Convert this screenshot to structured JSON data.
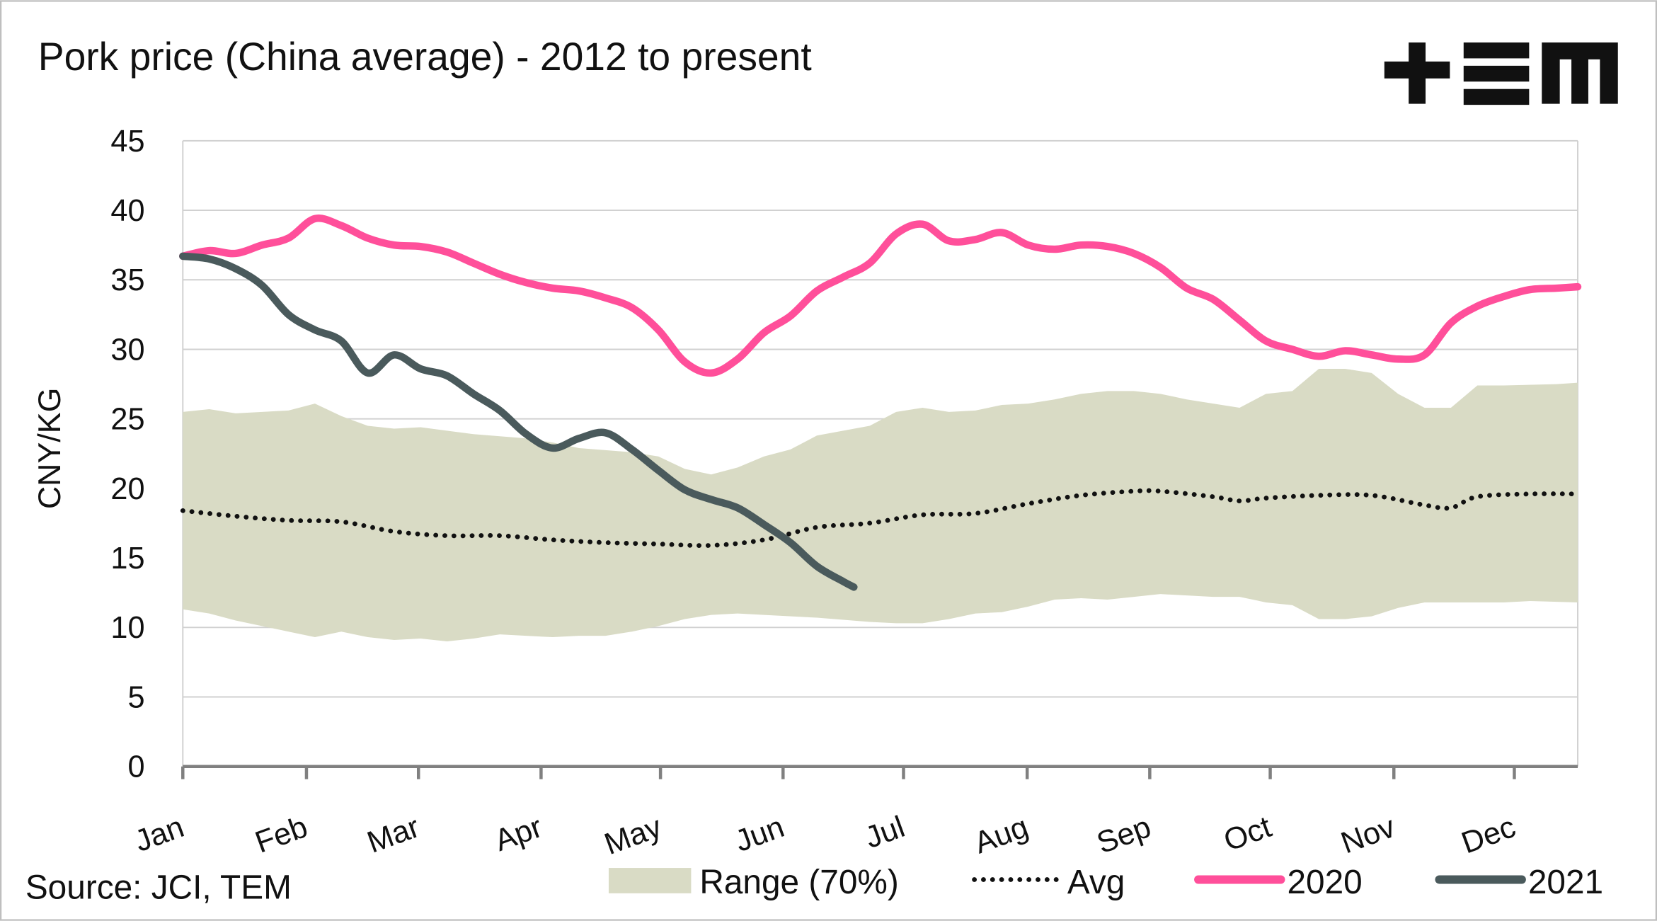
{
  "chart_data": {
    "type": "line",
    "title": "Pork price (China average) - 2012 to present",
    "ylabel": "CNY/KG",
    "xlabel": "",
    "source": "Source: JCI, TEM",
    "logo_text": "+EM",
    "ylim": [
      0,
      45
    ],
    "yticks": [
      0,
      5,
      10,
      15,
      20,
      25,
      30,
      35,
      40,
      45
    ],
    "x_unit": "week of year",
    "xlim": [
      0,
      52.8
    ],
    "xticks": [
      {
        "label": "Jan",
        "x": 0
      },
      {
        "label": "Feb",
        "x": 4.68
      },
      {
        "label": "Mar",
        "x": 8.92
      },
      {
        "label": "Apr",
        "x": 13.56
      },
      {
        "label": "May",
        "x": 18.08
      },
      {
        "label": "Jun",
        "x": 22.72
      },
      {
        "label": "Jul",
        "x": 27.28
      },
      {
        "label": "Aug",
        "x": 31.96
      },
      {
        "label": "Sep",
        "x": 36.6
      },
      {
        "label": "Oct",
        "x": 41.16
      },
      {
        "label": "Nov",
        "x": 45.84
      },
      {
        "label": "Dec",
        "x": 50.4
      }
    ],
    "grid": true,
    "legend_position": "bottom",
    "range": {
      "name": "Range (70%)",
      "color": "#d9dbc5",
      "upper": {
        "x": [
          0,
          1,
          2,
          4,
          5,
          6,
          7,
          8,
          9,
          11,
          13,
          14,
          15,
          17,
          18,
          19,
          20,
          21,
          22,
          23,
          24,
          26,
          27,
          28,
          29,
          30,
          31,
          32,
          33,
          34,
          35,
          36,
          37,
          38,
          39,
          40,
          41,
          42,
          43,
          44,
          45,
          46,
          47,
          48,
          49,
          50,
          52,
          52.8
        ],
        "y": [
          25.5,
          25.7,
          25.4,
          25.6,
          26.1,
          25.2,
          24.5,
          24.3,
          24.4,
          23.9,
          23.6,
          23.3,
          22.9,
          22.6,
          22.3,
          21.4,
          21.0,
          21.5,
          22.3,
          22.8,
          23.8,
          24.5,
          25.5,
          25.8,
          25.5,
          25.6,
          26.0,
          26.1,
          26.4,
          26.8,
          27.0,
          27.0,
          26.8,
          26.4,
          26.1,
          25.8,
          26.8,
          27.0,
          28.6,
          28.6,
          28.3,
          26.8,
          25.8,
          25.8,
          27.4,
          27.4,
          27.5,
          27.6
        ]
      },
      "lower": {
        "x": [
          0,
          1,
          2,
          4,
          5,
          6,
          7,
          8,
          9,
          10,
          11,
          12,
          13,
          14,
          15,
          16,
          17,
          18,
          19,
          20,
          21,
          22,
          24,
          26,
          27,
          28,
          29,
          30,
          31,
          32,
          33,
          34,
          35,
          36,
          37,
          39,
          40,
          41,
          42,
          43,
          44,
          45,
          46,
          47,
          48,
          50,
          51,
          52.8
        ],
        "y": [
          11.3,
          11.0,
          10.5,
          9.7,
          9.3,
          9.7,
          9.3,
          9.1,
          9.2,
          9.0,
          9.2,
          9.5,
          9.4,
          9.3,
          9.4,
          9.4,
          9.7,
          10.1,
          10.6,
          10.9,
          11.0,
          10.9,
          10.7,
          10.4,
          10.3,
          10.3,
          10.6,
          11.0,
          11.1,
          11.5,
          12.0,
          12.1,
          12.0,
          12.2,
          12.4,
          12.2,
          12.2,
          11.8,
          11.6,
          10.6,
          10.6,
          10.8,
          11.4,
          11.8,
          11.8,
          11.8,
          11.9,
          11.8
        ]
      }
    },
    "series": [
      {
        "name": "Avg",
        "color": "#111111",
        "style": "dotted",
        "x": [
          0,
          2,
          4,
          6,
          8,
          10,
          12,
          14,
          16,
          18,
          20,
          22,
          24,
          26,
          28,
          30,
          32,
          34,
          36,
          37,
          39,
          40,
          41,
          43,
          45,
          47,
          48,
          49,
          51,
          52.8
        ],
        "y": [
          18.4,
          18.0,
          17.7,
          17.6,
          16.9,
          16.6,
          16.6,
          16.3,
          16.1,
          16.0,
          15.9,
          16.3,
          17.2,
          17.5,
          18.1,
          18.2,
          18.9,
          19.5,
          19.8,
          19.8,
          19.4,
          19.1,
          19.3,
          19.5,
          19.5,
          18.8,
          18.6,
          19.4,
          19.6,
          19.6
        ]
      },
      {
        "name": "2020",
        "color": "#ff4f9a",
        "style": "solid",
        "x": [
          0,
          1,
          2,
          3,
          4,
          5,
          6,
          7,
          8,
          9,
          10,
          11,
          12,
          13,
          14,
          15,
          16,
          17,
          18,
          19,
          20,
          21,
          22,
          23,
          24,
          25,
          26,
          27,
          28,
          29,
          30,
          31,
          32,
          33,
          34,
          35,
          36,
          37,
          38,
          39,
          40,
          41,
          42,
          43,
          44,
          45,
          46,
          47,
          48,
          49,
          50,
          51,
          52,
          52.8
        ],
        "y": [
          36.7,
          37.1,
          36.9,
          37.5,
          38.0,
          39.4,
          38.9,
          38.0,
          37.5,
          37.4,
          37.0,
          36.2,
          35.4,
          34.8,
          34.4,
          34.2,
          33.7,
          33.0,
          31.4,
          29.1,
          28.3,
          29.3,
          31.2,
          32.4,
          34.2,
          35.2,
          36.2,
          38.3,
          39.0,
          37.8,
          37.9,
          38.4,
          37.5,
          37.2,
          37.5,
          37.4,
          36.9,
          35.9,
          34.4,
          33.6,
          32.1,
          30.6,
          30.0,
          29.5,
          29.9,
          29.6,
          29.3,
          29.6,
          31.9,
          33.1,
          33.8,
          34.3,
          34.4,
          34.5
        ]
      },
      {
        "name": "2021",
        "color": "#4a5a5c",
        "style": "solid",
        "x": [
          0,
          1,
          2,
          3,
          4,
          5,
          6,
          7,
          8,
          9,
          10,
          11,
          12,
          13,
          14,
          15,
          16,
          17,
          18,
          19,
          20,
          21,
          22,
          23,
          24,
          25,
          25.4
        ],
        "y": [
          36.7,
          36.5,
          35.8,
          34.6,
          32.5,
          31.4,
          30.6,
          28.3,
          29.6,
          28.6,
          28.1,
          26.8,
          25.6,
          23.9,
          22.9,
          23.6,
          24.0,
          22.8,
          21.3,
          19.9,
          19.2,
          18.6,
          17.4,
          16.1,
          14.4,
          13.3,
          12.9
        ]
      }
    ]
  }
}
